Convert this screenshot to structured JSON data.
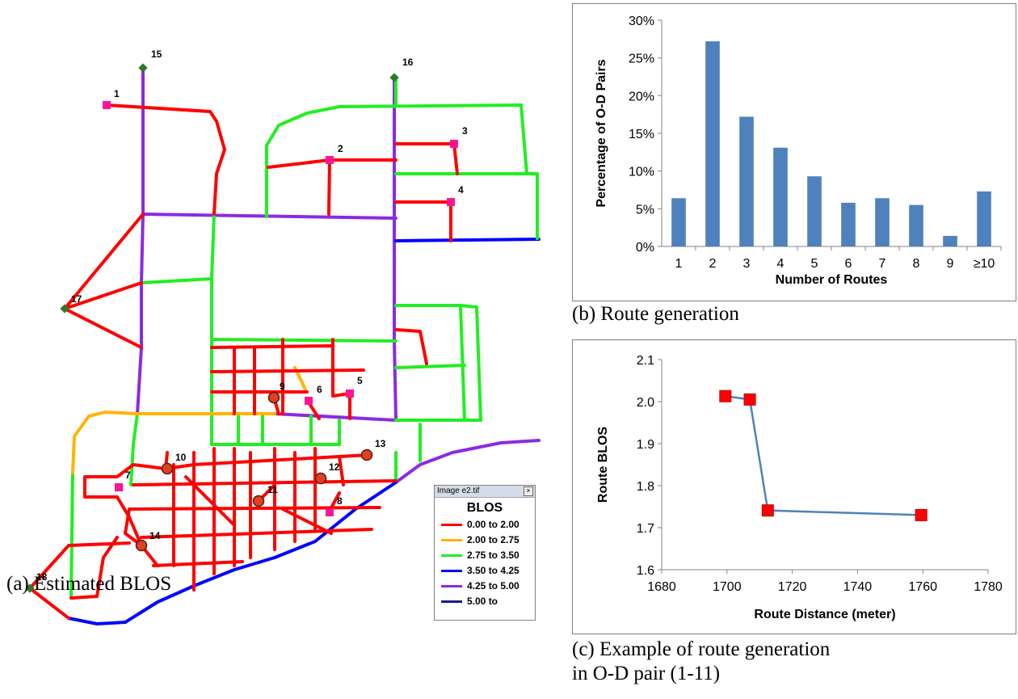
{
  "map": {
    "caption": "(a) Estimated BLOS",
    "legend": {
      "window_title": "Image e2.tif",
      "close_glyph": "×",
      "title": "BLOS",
      "items": [
        {
          "label": "0.00 to 2.00",
          "color": "#ff0000"
        },
        {
          "label": "2.00 to 2.75",
          "color": "#ffb400"
        },
        {
          "label": "2.75 to 3.50",
          "color": "#22ee22"
        },
        {
          "label": "3.50 to 4.25",
          "color": "#0000ff"
        },
        {
          "label": "4.25 to 5.00",
          "color": "#8a2be2"
        },
        {
          "label": "5.00 to",
          "color": "#0a1e8c"
        }
      ]
    },
    "node_labels": [
      "1",
      "2",
      "3",
      "4",
      "5",
      "6",
      "7",
      "8",
      "9",
      "10",
      "11",
      "12",
      "13",
      "14",
      "15",
      "16",
      "17",
      "18"
    ]
  },
  "chart_data": [
    {
      "id": "b",
      "type": "bar",
      "caption": "(b) Route generation",
      "xlabel": "Number of Routes",
      "ylabel": "Percentage of O-D Pairs",
      "categories": [
        "1",
        "2",
        "3",
        "4",
        "5",
        "6",
        "7",
        "8",
        "9",
        "≥10"
      ],
      "values": [
        6.4,
        27.2,
        17.2,
        13.1,
        9.3,
        5.8,
        6.4,
        5.5,
        1.4,
        7.3
      ],
      "ylim": [
        0,
        30
      ],
      "yticks": [
        "0%",
        "5%",
        "10%",
        "15%",
        "20%",
        "25%",
        "30%"
      ],
      "color": "#4f81bd",
      "grid": false,
      "legend": "none"
    },
    {
      "id": "c",
      "type": "line",
      "caption": "(c) Example of route generation in O-D pair (1-11)",
      "xlabel": "Route Distance (meter)",
      "ylabel": "Route BLOS",
      "x": [
        1699.5,
        1707,
        1712.5,
        1759.5
      ],
      "y": [
        2.013,
        2.005,
        1.741,
        1.73
      ],
      "xlim": [
        1680,
        1780
      ],
      "ylim": [
        1.6,
        2.1
      ],
      "xticks": [
        "1680",
        "1700",
        "1720",
        "1740",
        "1760",
        "1780"
      ],
      "yticks": [
        "1.6",
        "1.7",
        "1.8",
        "1.9",
        "2.0",
        "2.1"
      ],
      "line_color": "#4f81bd",
      "marker_color": "#ff0000",
      "grid": false,
      "legend": "none"
    }
  ]
}
